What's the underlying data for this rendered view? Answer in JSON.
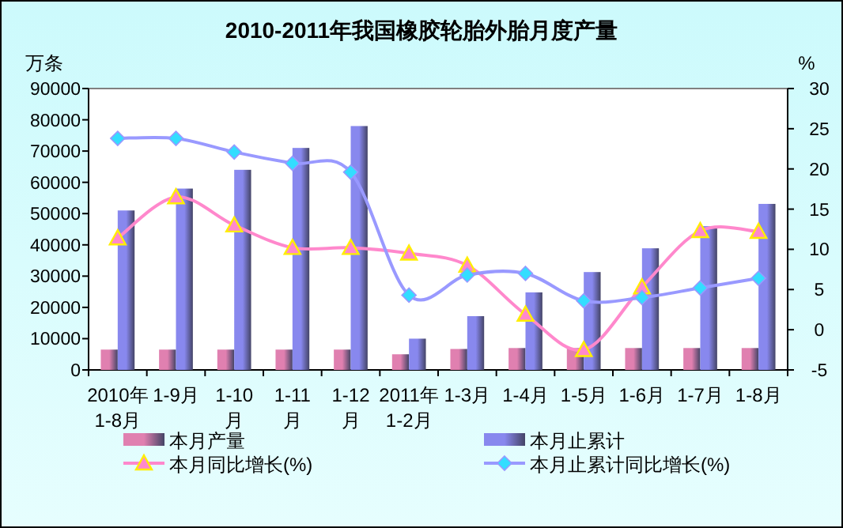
{
  "chart_data": {
    "type": "bar",
    "title": "2010-2011年我国橡胶轮胎外胎月度产量",
    "ylabel": "万条",
    "y2label": "%",
    "categories": [
      "2010年\n1-8月",
      "1-9月",
      "1-10\n月",
      "1-11\n月",
      "1-12\n月",
      "2011年\n1-2月",
      "1-3月",
      "1-4月",
      "1-5月",
      "1-6月",
      "1-7月",
      "1-8月"
    ],
    "series": [
      {
        "name": "本月产量",
        "color": "#e080b0",
        "values": [
          6500,
          6500,
          6500,
          6500,
          6500,
          5000,
          6700,
          7000,
          7000,
          7000,
          7000,
          7000
        ]
      },
      {
        "name": "本月止累计",
        "color": "#8888ee",
        "values": [
          51000,
          58000,
          64000,
          71000,
          78000,
          10000,
          17200,
          24800,
          31300,
          38900,
          46000,
          53100
        ]
      },
      {
        "name": "本月同比增长(%)",
        "type": "line",
        "axis": "y2",
        "marker": "triangle",
        "color": "#ff88cc",
        "values": [
          11.4,
          16.5,
          13,
          10.2,
          10.2,
          9.5,
          8,
          1.9,
          -2.5,
          5.3,
          12.3,
          12.2
        ]
      },
      {
        "name": "本月止累计同比增长(%)",
        "type": "line",
        "axis": "y2",
        "marker": "diamond",
        "color": "#9999ff",
        "values": [
          23.8,
          23.8,
          22.1,
          20.7,
          19.6,
          4.3,
          6.8,
          7,
          3.6,
          4,
          5.2,
          6.4
        ]
      }
    ],
    "ylim": [
      0,
      90000
    ],
    "yticks": [
      0,
      10000,
      20000,
      30000,
      40000,
      50000,
      60000,
      70000,
      80000,
      90000
    ],
    "y2lim": [
      -5,
      30
    ],
    "y2ticks": [
      -5,
      0,
      5,
      10,
      15,
      20,
      25,
      30
    ],
    "legend": "bottom",
    "grid": false
  }
}
